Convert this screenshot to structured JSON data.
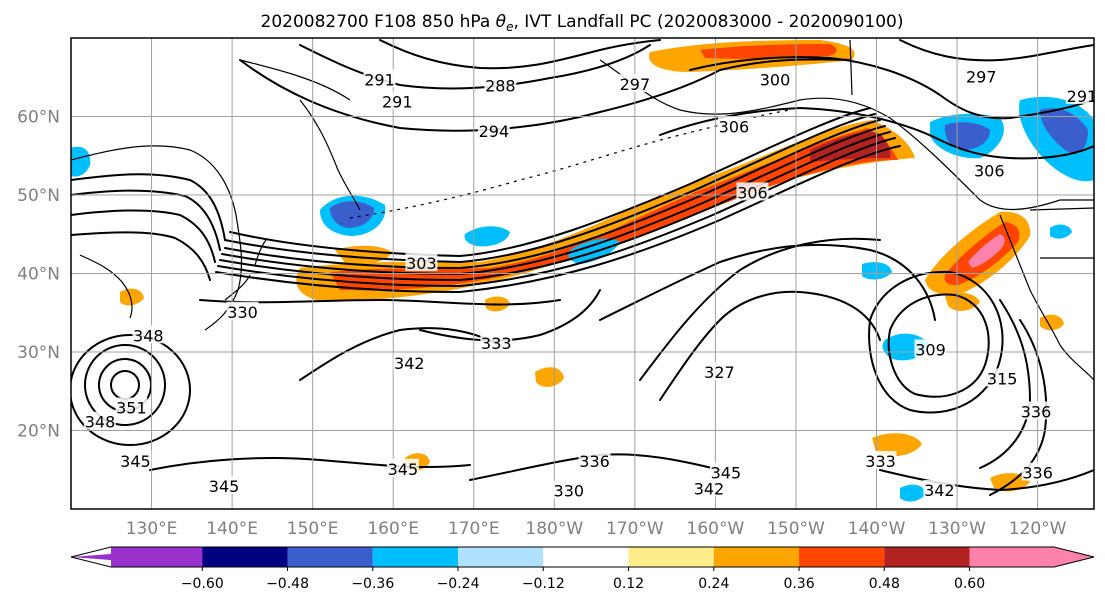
{
  "title": {
    "prefix": "2020082700 F108 850 hPa ",
    "theta_symbol": "θ",
    "theta_sub": "e",
    "suffix": ", IVT Landfall PC (2020083000 - 2020090100)"
  },
  "map": {
    "projection": "PlateCarree",
    "lon_range": [
      120,
      247
    ],
    "lat_range": [
      10,
      70
    ],
    "lat_ticks": [
      {
        "value": 20,
        "label": "20°N"
      },
      {
        "value": 30,
        "label": "30°N"
      },
      {
        "value": 40,
        "label": "40°N"
      },
      {
        "value": 50,
        "label": "50°N"
      },
      {
        "value": 60,
        "label": "60°N"
      }
    ],
    "lon_ticks": [
      {
        "value": 130,
        "label": "130°E"
      },
      {
        "value": 140,
        "label": "140°E"
      },
      {
        "value": 150,
        "label": "150°E"
      },
      {
        "value": 160,
        "label": "160°E"
      },
      {
        "value": 170,
        "label": "170°E"
      },
      {
        "value": 180,
        "label": "180°W"
      },
      {
        "value": 190,
        "label": "170°W"
      },
      {
        "value": 200,
        "label": "160°W"
      },
      {
        "value": 210,
        "label": "150°W"
      },
      {
        "value": 220,
        "label": "140°W"
      },
      {
        "value": 230,
        "label": "130°W"
      },
      {
        "value": 240,
        "label": "120°W"
      }
    ],
    "grid": true,
    "grid_color": "#a0a0a0",
    "coastline_color": "#000000"
  },
  "theta_e_contours": [
    {
      "label": "291",
      "lon": 160.5,
      "lat": 61.8
    },
    {
      "label": "288",
      "lon": 173.3,
      "lat": 63.8
    },
    {
      "label": "291",
      "lon": 158.3,
      "lat": 64.6
    },
    {
      "label": "294",
      "lon": 172.5,
      "lat": 58.0
    },
    {
      "label": "297",
      "lon": 190.0,
      "lat": 64.0
    },
    {
      "label": "300",
      "lon": 207.4,
      "lat": 64.6
    },
    {
      "label": "306",
      "lon": 202.3,
      "lat": 58.6
    },
    {
      "label": "306",
      "lon": 204.6,
      "lat": 50.2
    },
    {
      "label": "306",
      "lon": 234.0,
      "lat": 53.0
    },
    {
      "label": "297",
      "lon": 233.0,
      "lat": 65.0
    },
    {
      "label": "291",
      "lon": 245.5,
      "lat": 62.5
    },
    {
      "label": "303",
      "lon": 163.5,
      "lat": 41.2
    },
    {
      "label": "330",
      "lon": 141.3,
      "lat": 35.0
    },
    {
      "label": "348",
      "lon": 129.6,
      "lat": 32.0
    },
    {
      "label": "342",
      "lon": 162.0,
      "lat": 28.5
    },
    {
      "label": "333",
      "lon": 172.8,
      "lat": 31.0
    },
    {
      "label": "351",
      "lon": 127.5,
      "lat": 22.8
    },
    {
      "label": "348",
      "lon": 123.6,
      "lat": 21.0
    },
    {
      "label": "345",
      "lon": 128.0,
      "lat": 16.0
    },
    {
      "label": "345",
      "lon": 139.0,
      "lat": 12.8
    },
    {
      "label": "345",
      "lon": 161.2,
      "lat": 15.0
    },
    {
      "label": "336",
      "lon": 185.0,
      "lat": 16.0
    },
    {
      "label": "330",
      "lon": 181.8,
      "lat": 12.2
    },
    {
      "label": "327",
      "lon": 200.5,
      "lat": 27.3
    },
    {
      "label": "345",
      "lon": 201.3,
      "lat": 14.5
    },
    {
      "label": "342",
      "lon": 199.2,
      "lat": 12.5
    },
    {
      "label": "309",
      "lon": 226.7,
      "lat": 30.2
    },
    {
      "label": "315",
      "lon": 235.6,
      "lat": 26.5
    },
    {
      "label": "336",
      "lon": 239.8,
      "lat": 22.3
    },
    {
      "label": "333",
      "lon": 220.5,
      "lat": 16.0
    },
    {
      "label": "342",
      "lon": 227.8,
      "lat": 12.3
    },
    {
      "label": "336",
      "lon": 240.0,
      "lat": 14.5
    }
  ],
  "ivt_pc_colorbar": {
    "levels": [
      -0.6,
      -0.48,
      -0.36,
      -0.24,
      -0.12,
      0.12,
      0.24,
      0.36,
      0.48,
      0.6
    ],
    "labels": [
      "−0.60",
      "−0.48",
      "−0.36",
      "−0.24",
      "−0.12",
      "0.12",
      "0.24",
      "0.36",
      "0.48",
      "0.60"
    ],
    "colors": [
      "#9932cc",
      "#000080",
      "#3a5fcd",
      "#00bfff",
      "#b0e2ff",
      "#ffffff",
      "#ffec8b",
      "#ffa500",
      "#ff4500",
      "#b22222",
      "#ff82ab"
    ],
    "extend": "both"
  }
}
